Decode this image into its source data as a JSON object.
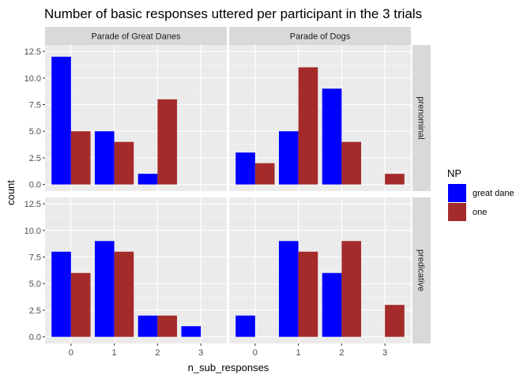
{
  "chart_data": {
    "type": "bar",
    "title": "Number of basic responses uttered per participant in the 3 trials",
    "xlabel": "n_sub_responses",
    "ylabel": "count",
    "categories": [
      "0",
      "1",
      "2",
      "3"
    ],
    "ylim": [
      0,
      13
    ],
    "yticks": [
      "0.0",
      "2.5",
      "5.0",
      "7.5",
      "10.0",
      "12.5"
    ],
    "ytick_values": [
      0,
      2.5,
      5,
      7.5,
      10,
      12.5
    ],
    "grid": true,
    "facet_columns": [
      "Parade of Great Danes",
      "Parade of Dogs"
    ],
    "facet_rows": [
      "prenominal",
      "predicative"
    ],
    "legend": {
      "title": "NP",
      "position": "right",
      "entries": [
        {
          "name": "great dane",
          "color": "#0000ff"
        },
        {
          "name": "one",
          "color": "#a52a2a"
        }
      ]
    },
    "panels": [
      {
        "column": "Parade of Great Danes",
        "row": "prenominal",
        "series": [
          {
            "name": "great dane",
            "values": [
              12,
              5,
              1,
              null
            ]
          },
          {
            "name": "one",
            "values": [
              5,
              4,
              8,
              null
            ]
          }
        ]
      },
      {
        "column": "Parade of Dogs",
        "row": "prenominal",
        "series": [
          {
            "name": "great dane",
            "values": [
              3,
              5,
              9,
              null
            ]
          },
          {
            "name": "one",
            "values": [
              2,
              11,
              4,
              1
            ]
          }
        ]
      },
      {
        "column": "Parade of Great Danes",
        "row": "predicative",
        "series": [
          {
            "name": "great dane",
            "values": [
              8,
              9,
              2,
              1
            ]
          },
          {
            "name": "one",
            "values": [
              6,
              8,
              2,
              null
            ]
          }
        ]
      },
      {
        "column": "Parade of Dogs",
        "row": "predicative",
        "series": [
          {
            "name": "great dane",
            "values": [
              2,
              9,
              6,
              null
            ]
          },
          {
            "name": "one",
            "values": [
              null,
              8,
              9,
              3
            ]
          }
        ]
      }
    ]
  }
}
